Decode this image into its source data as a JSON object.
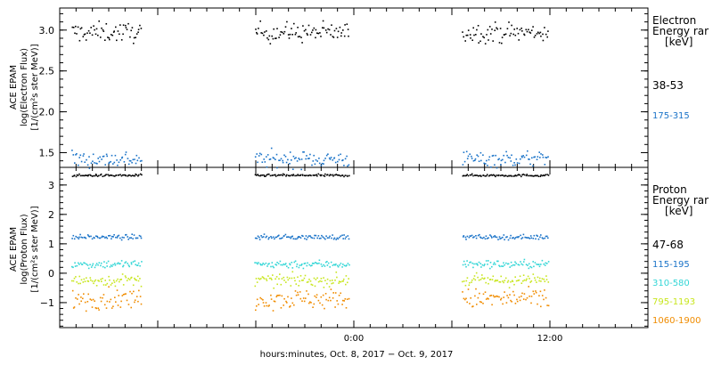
{
  "chart_data": [
    {
      "type": "scatter",
      "panel": "electron",
      "ylabel_lines": [
        "ACE EPAM",
        "log(Electron Flux)",
        "[1/(cm²s ster MeV)]"
      ],
      "ylim": [
        1.32,
        3.27
      ],
      "yticks": [
        1.5,
        2.0,
        2.5,
        3.0
      ],
      "ytick_labels": [
        "1.5",
        "2.0",
        "2.5",
        "3.0"
      ],
      "legend_title": [
        "Electron",
        "Energy rar",
        "[keV]"
      ],
      "series": [
        {
          "name": "38-53",
          "color": "#000000",
          "mean": 2.98,
          "spread": 0.06
        },
        {
          "name": "175-315",
          "color": "#1a73c8",
          "mean": 1.43,
          "spread": 0.05
        }
      ]
    },
    {
      "type": "scatter",
      "panel": "proton",
      "ylabel_lines": [
        "ACE EPAM",
        "log(Proton Flux)",
        "[1/(cm²s ster MeV)]"
      ],
      "ylim": [
        -1.85,
        3.6
      ],
      "yticks": [
        -1,
        0,
        1,
        2,
        3
      ],
      "ytick_labels": [
        "−1",
        "0",
        "1",
        "2",
        "3"
      ],
      "legend_title": [
        "Proton",
        "Energy rar",
        "[keV]"
      ],
      "series": [
        {
          "name": "47-68",
          "color": "#000000",
          "mean": 3.35,
          "spread": 0.02
        },
        {
          "name": "115-195",
          "color": "#1a73c8",
          "mean": 1.25,
          "spread": 0.04
        },
        {
          "name": "310-580",
          "color": "#33d6d6",
          "mean": 0.33,
          "spread": 0.07
        },
        {
          "name": "795-1193",
          "color": "#c8e61e",
          "mean": -0.22,
          "spread": 0.1
        },
        {
          "name": "1060-1900",
          "color": "#f08c00",
          "mean": -0.85,
          "spread": 0.17
        }
      ]
    }
  ],
  "x_axis": {
    "range_hours": [
      -18,
      18
    ],
    "tick_labels": [
      {
        "value": 0,
        "label": "0:00"
      },
      {
        "value": 12,
        "label": "12:00"
      }
    ],
    "minor_every_hours": 1,
    "major_every_hours": 6,
    "title": "hours:minutes, Oct.  8, 2017 − Oct.  9, 2017"
  },
  "data_segments_hours": [
    [
      -17.3,
      -13.0
    ],
    [
      -6.1,
      -0.3
    ],
    [
      6.6,
      11.9
    ]
  ]
}
